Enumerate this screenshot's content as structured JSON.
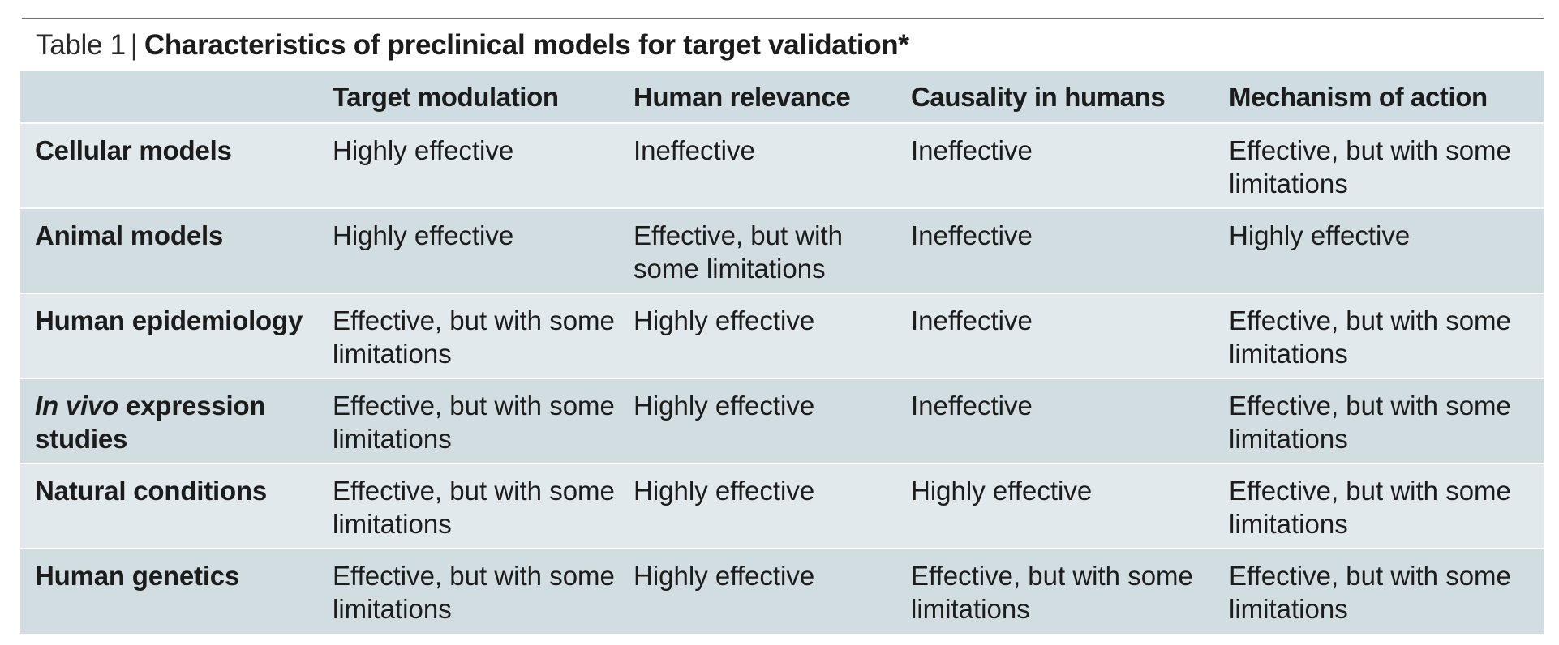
{
  "caption": {
    "label": "Table 1",
    "separator": "|",
    "title": "Characteristics of preclinical models for target validation*"
  },
  "table": {
    "headers": [
      "",
      "Target modulation",
      "Human relevance",
      "Causality in humans",
      "Mechanism of action"
    ],
    "rows": [
      {
        "label": "Cellular models",
        "cells": [
          "Highly effective",
          "Ineffective",
          "Ineffective",
          "Effective, but with some limitations"
        ]
      },
      {
        "label": "Animal models",
        "cells": [
          "Highly effective",
          "Effective, but with some limitations",
          "Ineffective",
          "Highly effective"
        ]
      },
      {
        "label": "Human epidemiology",
        "cells": [
          "Effective, but with some limitations",
          "Highly effective",
          "Ineffective",
          "Effective, but with some limitations"
        ]
      },
      {
        "label_italic": "In vivo",
        "label": " expression studies",
        "cells": [
          "Effective, but with some limitations",
          "Highly effective",
          "Ineffective",
          "Effective, but with some limitations"
        ]
      },
      {
        "label": "Natural conditions",
        "cells": [
          "Effective, but with some limitations",
          "Highly effective",
          "Highly effective",
          "Effective, but with some limitations"
        ]
      },
      {
        "label": "Human genetics",
        "cells": [
          "Effective, but with some limitations",
          "Highly effective",
          "Effective, but with some limitations",
          "Effective, but with some limitations"
        ]
      }
    ]
  },
  "colors": {
    "header_bg": "#cfdde2",
    "row_light": "#e2e9ec",
    "row_dark": "#d2dde1",
    "rule": "#6f6f6f"
  }
}
